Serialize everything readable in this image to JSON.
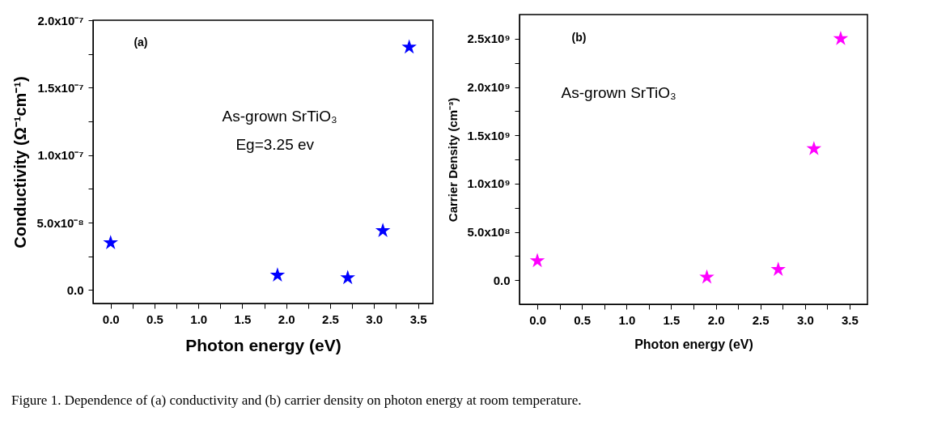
{
  "chart_data": [
    {
      "type": "scatter",
      "xlabel": "Photon energy (eV)",
      "ylabel": "Conductivity (Ω⁻¹cm⁻¹)",
      "x": [
        0.0,
        1.9,
        2.7,
        3.1,
        3.4
      ],
      "series": [
        {
          "color": "#0000ff",
          "values": [
            3.5e-08,
            1.1e-08,
            9e-09,
            4.4e-08,
            1.8e-07
          ]
        }
      ],
      "marker": "star",
      "grid": false,
      "legend": false,
      "xlim": [
        -0.2,
        3.67
      ],
      "xticks": [
        {
          "value": 0,
          "label": "0.0"
        },
        {
          "value": 0.25,
          "label": null
        },
        0.5,
        {
          "value": 0.75,
          "label": null
        },
        {
          "value": 1,
          "label": "1.0"
        },
        {
          "value": 1.25,
          "label": null
        },
        1.5,
        {
          "value": 1.75,
          "label": null
        },
        {
          "value": 2,
          "label": "2.0"
        },
        {
          "value": 2.25,
          "label": null
        },
        2.5,
        {
          "value": 2.75,
          "label": null
        },
        {
          "value": 3,
          "label": "3.0"
        },
        {
          "value": 3.25,
          "label": null
        },
        3.5
      ],
      "ylim": [
        -1e-08,
        2e-07
      ],
      "yticks": [
        {
          "value": 0,
          "label": "0.0"
        },
        {
          "value": 2.5e-08,
          "label": null
        },
        {
          "value": 5e-08,
          "label": "5.0x10⁻⁸"
        },
        {
          "value": 7.5e-08,
          "label": null
        },
        {
          "value": 1e-07,
          "label": "1.0x10⁻⁷"
        },
        {
          "value": 1.25e-07,
          "label": null
        },
        {
          "value": 1.5e-07,
          "label": "1.5x10⁻⁷"
        },
        {
          "value": 1.75e-07,
          "label": null
        },
        {
          "value": 2e-07,
          "label": "2.0x10⁻⁷"
        }
      ],
      "annotations": [
        "(a)",
        "As-grown SrTiO₃",
        "Eg=3.25 ev"
      ]
    },
    {
      "type": "scatter",
      "xlabel": "Photon energy (eV)",
      "ylabel": "Carrier Density (cm⁻³)",
      "x": [
        0.0,
        1.9,
        2.7,
        3.1,
        3.4
      ],
      "series": [
        {
          "color": "#ff00ff",
          "values": [
            200000000.0,
            30000000.0,
            110000000.0,
            1360000000.0,
            2500000000.0
          ]
        }
      ],
      "marker": "star",
      "grid": false,
      "legend": false,
      "xlim": [
        -0.2,
        3.7
      ],
      "xticks": [
        {
          "value": 0,
          "label": "0.0"
        },
        {
          "value": 0.25,
          "label": null
        },
        0.5,
        {
          "value": 0.75,
          "label": null
        },
        {
          "value": 1,
          "label": "1.0"
        },
        {
          "value": 1.25,
          "label": null
        },
        1.5,
        {
          "value": 1.75,
          "label": null
        },
        {
          "value": 2,
          "label": "2.0"
        },
        {
          "value": 2.25,
          "label": null
        },
        2.5,
        {
          "value": 2.75,
          "label": null
        },
        {
          "value": 3,
          "label": "3.0"
        },
        {
          "value": 3.25,
          "label": null
        },
        3.5
      ],
      "ylim": [
        -250000000.0,
        2750000000.0
      ],
      "yticks": [
        {
          "value": 0,
          "label": "0.0"
        },
        {
          "value": 250000000.0,
          "label": null
        },
        {
          "value": 500000000.0,
          "label": "5.0x10⁸"
        },
        {
          "value": 750000000.0,
          "label": null
        },
        {
          "value": 1000000000.0,
          "label": "1.0x10⁹"
        },
        {
          "value": 1250000000.0,
          "label": null
        },
        {
          "value": 1500000000.0,
          "label": "1.5x10⁹"
        },
        {
          "value": 1750000000.0,
          "label": null
        },
        {
          "value": 2000000000.0,
          "label": "2.0x10⁹"
        },
        {
          "value": 2250000000.0,
          "label": null
        },
        {
          "value": 2500000000.0,
          "label": "2.5x10⁹"
        }
      ],
      "annotations": [
        "(b)",
        "As-grown SrTiO₃",
        "Figure 1. Dependence of (a) conductivity and (b) carrier density on photon energy at room temperature."
      ]
    }
  ]
}
